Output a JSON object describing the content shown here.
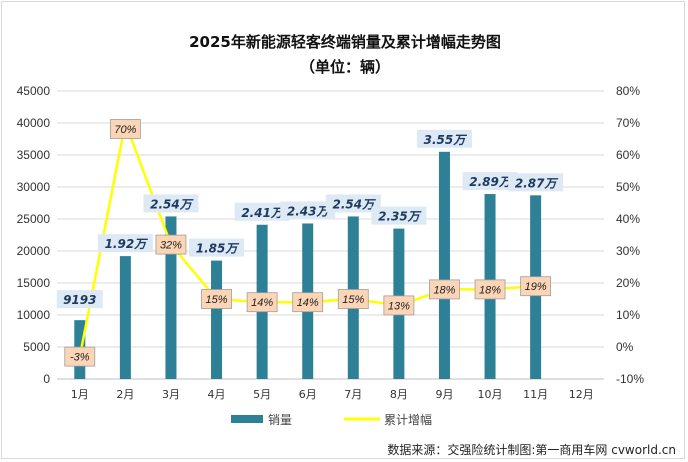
{
  "chart_data": {
    "type": "bar+line",
    "title": "2025年新能源轻客终端销量及累计增幅走势图",
    "subtitle": "（单位：辆）",
    "categories": [
      "1月",
      "2月",
      "3月",
      "4月",
      "5月",
      "6月",
      "7月",
      "8月",
      "9月",
      "10月",
      "11月",
      "12月"
    ],
    "series": [
      {
        "name": "销量",
        "type": "bar",
        "axis": "left",
        "color": "#2e8096",
        "values": [
          9193,
          19200,
          25400,
          18500,
          24100,
          24300,
          25400,
          23500,
          35500,
          28900,
          28700,
          null
        ],
        "labels": [
          "9193",
          "1.92万",
          "2.54万",
          "1.85万",
          "2.41万",
          "2.43万",
          "2.54万",
          "2.35万",
          "3.55万",
          "2.89万",
          "2.87万",
          ""
        ]
      },
      {
        "name": "累计增幅",
        "type": "line",
        "axis": "right",
        "color": "#ffff00",
        "values": [
          -3,
          70,
          32,
          15,
          14,
          14,
          15,
          13,
          18,
          18,
          19,
          null
        ],
        "labels": [
          "-3%",
          "70%",
          "32%",
          "15%",
          "14%",
          "14%",
          "15%",
          "13%",
          "18%",
          "18%",
          "19%",
          ""
        ]
      }
    ],
    "y_left": {
      "min": 0,
      "max": 45000,
      "step": 5000,
      "ticks": [
        "0",
        "5000",
        "10000",
        "15000",
        "20000",
        "25000",
        "30000",
        "35000",
        "40000",
        "45000"
      ]
    },
    "y_right": {
      "min": -10,
      "max": 80,
      "step": 10,
      "ticks": [
        "-10%",
        "0%",
        "10%",
        "20%",
        "30%",
        "40%",
        "50%",
        "60%",
        "70%",
        "80%"
      ]
    },
    "grid": true,
    "legend_position": "bottom"
  },
  "source": "数据来源：交强险统计制图:第一商用车网 cvworld.cn"
}
